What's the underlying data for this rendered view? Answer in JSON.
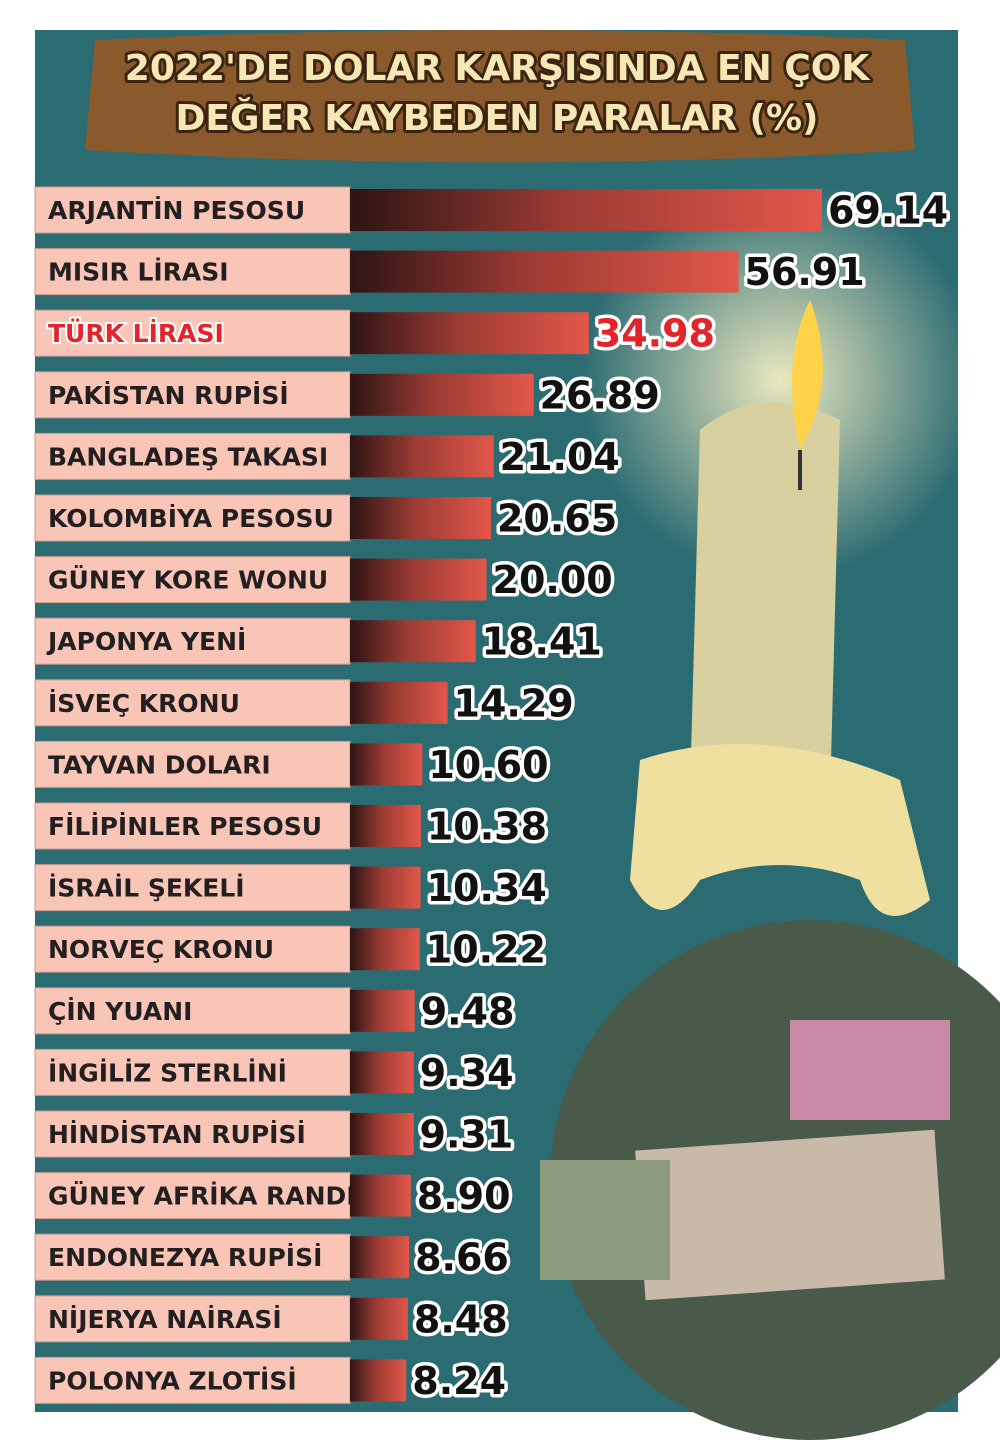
{
  "chart_data": {
    "type": "bar",
    "title": [
      "2022'DE DOLAR KARŞISINDA EN ÇOK",
      "DEĞER KAYBEDEN PARALAR (%)"
    ],
    "categories": [
      "ARJANTİN PESOSU",
      "MISIR LİRASI",
      "TÜRK LİRASI",
      "PAKİSTAN RUPİSİ",
      "BANGLADEŞ TAKASI",
      "KOLOMBİYA PESOSU",
      "GÜNEY KORE WONU",
      "JAPONYA YENİ",
      "İSVEÇ KRONU",
      "TAYVAN DOLARI",
      "FİLİPİNLER PESOSU",
      "İSRAİL ŞEKELİ",
      "NORVEÇ KRONU",
      "ÇİN YUANI",
      "İNGİLİZ STERLİNİ",
      "HİNDİSTAN RUPİSİ",
      "GÜNEY AFRİKA RANDI",
      "ENDONEZYA RUPİSİ",
      "NİJERYA NAİRASİ",
      "POLONYA ZLOTİSİ"
    ],
    "values": [
      69.14,
      56.91,
      34.98,
      26.89,
      21.04,
      20.65,
      20,
      18.41,
      14.29,
      10.6,
      10.38,
      10.34,
      10.22,
      9.48,
      9.34,
      9.31,
      8.9,
      8.66,
      8.48,
      8.24
    ],
    "value_labels": [
      "69.14",
      "56.91",
      "34.98",
      "26.89",
      "21.04",
      "20.65",
      "20.00",
      "18.41",
      "14.29",
      "10.60",
      "10.38",
      "10.34",
      "10.22",
      "9.48",
      "9.34",
      "9.31",
      "8.90",
      "8.66",
      "8.48",
      "8.24"
    ],
    "color": "#e2574a",
    "highlight": {
      "index": 2,
      "color": "#e3242b"
    }
  }
}
